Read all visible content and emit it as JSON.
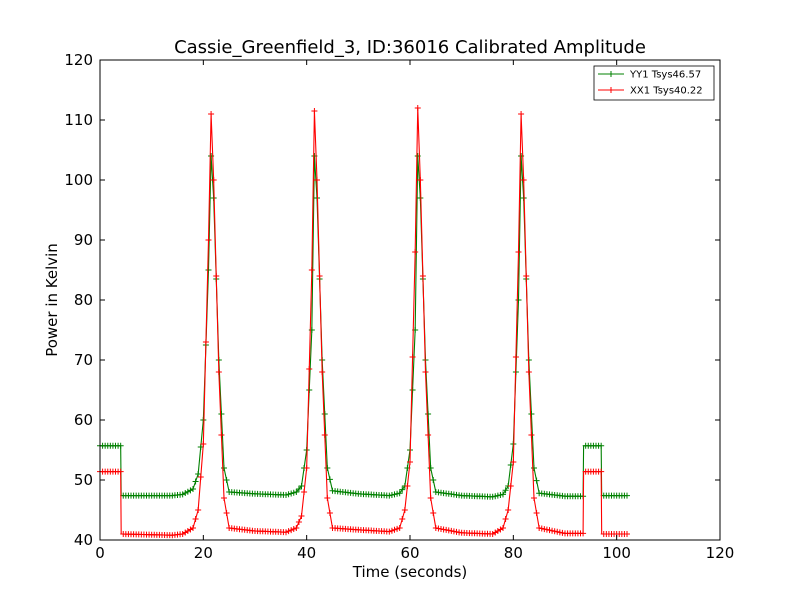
{
  "chart_data": {
    "type": "line",
    "title": "Cassie_Greenfield_3, ID:36016 Calibrated Amplitude",
    "xlabel": "Time (seconds)",
    "ylabel": "Power in Kelvin",
    "xlim": [
      0,
      120
    ],
    "ylim": [
      40,
      120
    ],
    "xticks": [
      0,
      20,
      40,
      60,
      80,
      100,
      120
    ],
    "yticks": [
      40,
      50,
      60,
      70,
      80,
      90,
      100,
      110,
      120
    ],
    "grid": false,
    "legend_position": "top-right",
    "marker": "+",
    "series": [
      {
        "name": "YY1 Tsys46.57",
        "color": "#008000",
        "x": [
          0,
          4,
          4.1,
          14,
          16,
          18,
          19,
          20,
          21,
          21.5,
          22,
          23,
          24,
          25,
          30,
          36,
          38,
          39,
          40,
          41,
          41.5,
          42,
          43,
          44,
          45,
          50,
          56,
          58,
          59,
          60,
          61,
          61.5,
          62,
          63,
          64,
          65,
          70,
          76,
          78,
          79,
          80,
          81,
          81.5,
          82,
          83,
          84,
          85,
          90,
          93.5,
          93.6,
          97,
          97.1,
          102
        ],
        "y": [
          55.7,
          55.7,
          47.4,
          47.4,
          47.6,
          48.5,
          51,
          60,
          85,
          104,
          97,
          70,
          52,
          48,
          47.7,
          47.5,
          48,
          49,
          55,
          75,
          104,
          97,
          70,
          52,
          48.2,
          47.7,
          47.4,
          47.8,
          49,
          55,
          75,
          104,
          97,
          70,
          52,
          48,
          47.4,
          47.2,
          47.6,
          49,
          56,
          80,
          104,
          97,
          70,
          52,
          47.8,
          47.3,
          47.3,
          55.7,
          55.7,
          47.4,
          47.4
        ]
      },
      {
        "name": "XX1 Tsys40.22",
        "color": "#ff0000",
        "x": [
          0,
          4,
          4.1,
          14,
          16,
          18,
          19,
          20,
          21,
          21.5,
          22,
          23,
          24,
          25,
          30,
          36,
          38,
          39,
          40,
          41,
          41.5,
          42,
          43,
          44,
          45,
          50,
          56,
          58,
          59,
          60,
          61,
          61.5,
          62,
          63,
          64,
          65,
          70,
          76,
          78,
          79,
          80,
          81,
          81.5,
          82,
          83,
          84,
          85,
          90,
          93.5,
          93.6,
          97,
          97.1,
          102
        ],
        "y": [
          51.4,
          51.4,
          41,
          40.8,
          41,
          42,
          45,
          56,
          90,
          111,
          100,
          68,
          47,
          42,
          41.5,
          41.3,
          42,
          44,
          52,
          85,
          111.5,
          100,
          68,
          47,
          42,
          41.7,
          41.4,
          42,
          45,
          53,
          88,
          112,
          100,
          68,
          47,
          42,
          41.2,
          41,
          42,
          45,
          53,
          88,
          111,
          100,
          68,
          47,
          42,
          41.1,
          41.1,
          51.4,
          51.4,
          41,
          41
        ]
      }
    ]
  }
}
